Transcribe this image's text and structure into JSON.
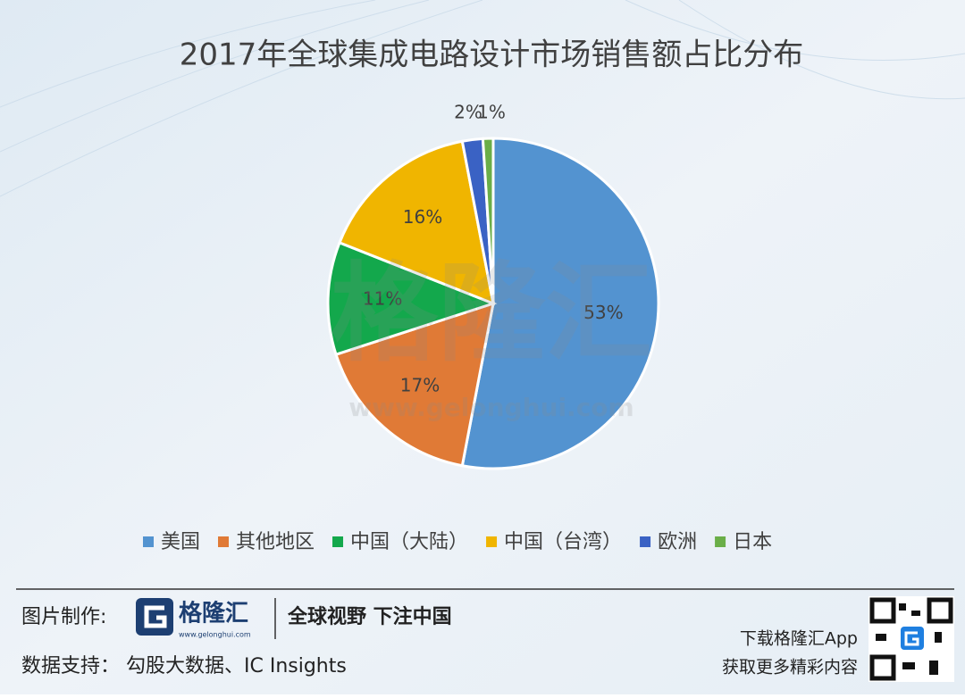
{
  "chart_data": {
    "type": "pie",
    "title": "2017年全球集成电路设计市场销售额占比分布",
    "categories": [
      "美国",
      "其他地区",
      "中国（大陆）",
      "中国（台湾）",
      "欧洲",
      "日本"
    ],
    "values": [
      53,
      17,
      11,
      16,
      2,
      1
    ],
    "value_labels": [
      "53%",
      "17%",
      "11%",
      "16%",
      "2%",
      "1%"
    ],
    "colors": [
      "#5393d0",
      "#e07a36",
      "#13a84c",
      "#f0b500",
      "#3a62c4",
      "#6aae48"
    ],
    "legend": "bottom"
  },
  "watermark": {
    "brand": "格隆汇",
    "url": "www.gelonghui.com"
  },
  "footer": {
    "made_by": "图片制作:",
    "logo": "格隆汇",
    "logo_url": "www.gelonghui.com",
    "slogan": "全球视野 下注中国",
    "source": "数据支持： 勾股大数据、IC Insights",
    "download": "下载格隆汇App",
    "more": "获取更多精彩内容"
  }
}
